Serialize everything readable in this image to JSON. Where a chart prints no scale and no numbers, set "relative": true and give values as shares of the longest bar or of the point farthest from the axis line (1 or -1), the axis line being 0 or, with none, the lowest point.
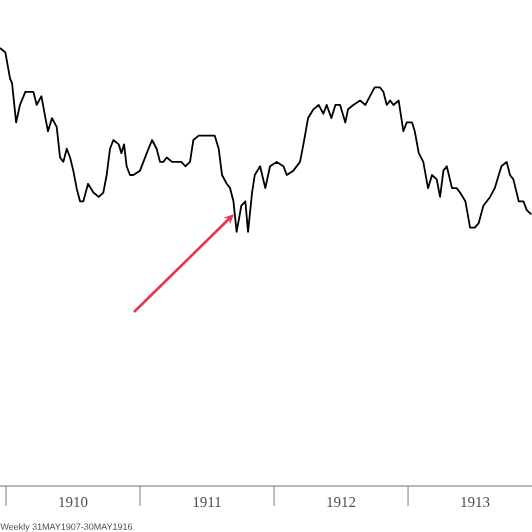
{
  "chart_data": {
    "type": "line",
    "relative": true,
    "xlim": [
      1909.955,
      1913.925
    ],
    "xticks": [
      {
        "value": 1910,
        "label": null
      },
      {
        "value": 1911,
        "label": null
      },
      {
        "value": 1912,
        "label": null
      },
      {
        "value": 1913,
        "label": null
      },
      {
        "value": 1910.5,
        "label": "1910"
      },
      {
        "value": 1911.5,
        "label": "1911"
      },
      {
        "value": 1912.5,
        "label": "1912"
      },
      {
        "value": 1913.5,
        "label": "1913"
      }
    ],
    "annotations": [
      "Weekly 31MAY1907-30MAY1916"
    ],
    "series": [
      {
        "color": "#000000",
        "x": [
          1909.955,
          1909.995,
          1910.03,
          1910.045,
          1910.075,
          1910.104,
          1910.144,
          1910.179,
          1910.204,
          1910.229,
          1910.264,
          1910.294,
          1910.313,
          1910.343,
          1910.378,
          1910.403,
          1910.428,
          1910.453,
          1910.478,
          1910.502,
          1910.527,
          1910.552,
          1910.577,
          1910.612,
          1910.652,
          1910.692,
          1910.726,
          1910.751,
          1910.776,
          1910.801,
          1910.841,
          1910.861,
          1910.881,
          1910.9,
          1910.925,
          1910.95,
          1911.0,
          1911.05,
          1911.09,
          1911.124,
          1911.149,
          1911.174,
          1911.199,
          1911.239,
          1911.274,
          1911.308,
          1911.338,
          1911.373,
          1911.398,
          1911.438,
          1911.498,
          1911.557,
          1911.587,
          1911.612,
          1911.647,
          1911.672,
          1911.697,
          1911.721,
          1911.756,
          1911.786,
          1911.806,
          1911.836,
          1911.856,
          1911.896,
          1911.935,
          1911.97,
          1912.02,
          1912.07,
          1912.095,
          1912.144,
          1912.194,
          1912.219,
          1912.254,
          1912.294,
          1912.333,
          1912.368,
          1912.393,
          1912.428,
          1912.458,
          1912.493,
          1912.532,
          1912.552,
          1912.592,
          1912.642,
          1912.682,
          1912.716,
          1912.751,
          1912.791,
          1912.816,
          1912.841,
          1912.866,
          1912.891,
          1912.93,
          1912.965,
          1912.99,
          1913.03,
          1913.05,
          1913.08,
          1913.114,
          1913.149,
          1913.179,
          1913.214,
          1913.239,
          1913.264,
          1913.289,
          1913.328,
          1913.363,
          1913.388,
          1913.428,
          1913.463,
          1913.498,
          1913.527,
          1913.562,
          1913.612,
          1913.647,
          1913.677,
          1913.697,
          1913.736,
          1913.761,
          1913.786,
          1913.826,
          1913.861,
          1913.886,
          1913.92
        ],
        "values": [
          1.0,
          0.99,
          0.93,
          0.92,
          0.83,
          0.87,
          0.9,
          0.9,
          0.9,
          0.87,
          0.89,
          0.84,
          0.81,
          0.84,
          0.82,
          0.75,
          0.74,
          0.77,
          0.75,
          0.72,
          0.68,
          0.65,
          0.65,
          0.69,
          0.67,
          0.66,
          0.67,
          0.71,
          0.77,
          0.79,
          0.78,
          0.76,
          0.78,
          0.73,
          0.71,
          0.71,
          0.72,
          0.76,
          0.79,
          0.77,
          0.74,
          0.74,
          0.75,
          0.74,
          0.74,
          0.74,
          0.73,
          0.74,
          0.79,
          0.8,
          0.8,
          0.8,
          0.77,
          0.71,
          0.69,
          0.68,
          0.65,
          0.58,
          0.64,
          0.65,
          0.58,
          0.67,
          0.71,
          0.73,
          0.68,
          0.73,
          0.74,
          0.73,
          0.71,
          0.72,
          0.74,
          0.78,
          0.84,
          0.86,
          0.87,
          0.85,
          0.87,
          0.84,
          0.87,
          0.87,
          0.83,
          0.86,
          0.87,
          0.88,
          0.87,
          0.89,
          0.91,
          0.91,
          0.9,
          0.87,
          0.88,
          0.87,
          0.88,
          0.81,
          0.83,
          0.83,
          0.81,
          0.76,
          0.74,
          0.68,
          0.71,
          0.7,
          0.66,
          0.72,
          0.73,
          0.68,
          0.68,
          0.67,
          0.65,
          0.59,
          0.59,
          0.6,
          0.64,
          0.66,
          0.68,
          0.71,
          0.73,
          0.74,
          0.71,
          0.7,
          0.65,
          0.65,
          0.63,
          0.62
        ]
      }
    ]
  }
}
